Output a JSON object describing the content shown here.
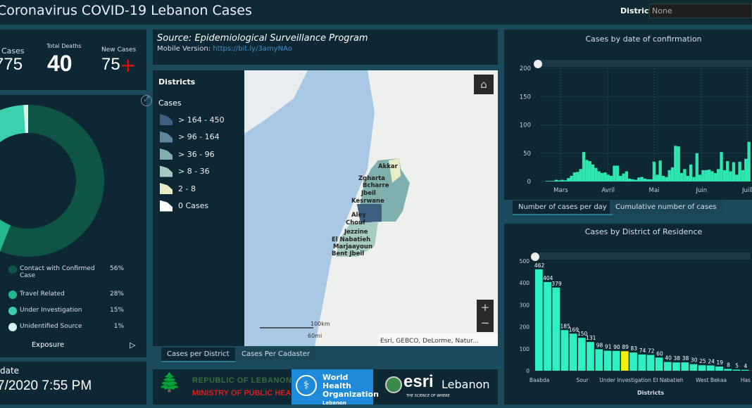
{
  "header": {
    "title": "Coronavirus COVID-19 Lebanon Cases",
    "district_label": "District",
    "district_value": "None"
  },
  "stats": {
    "total_cases_label": "Cases",
    "total_cases_value": "775",
    "deaths_label": "Total Deaths",
    "deaths_value": "40",
    "new_label": "New Cases",
    "new_value": "75",
    "new_icon": "plus-icon"
  },
  "exposure": {
    "title": "Exposure",
    "items": [
      {
        "label": "Contact with Confirmed Case",
        "pct": "56%",
        "value": 56,
        "color": "#0f5546"
      },
      {
        "label": "Travel Related",
        "pct": "28%",
        "value": 28,
        "color": "#23b890"
      },
      {
        "label": "Under Investigation",
        "pct": "15%",
        "value": 15,
        "color": "#3ad0ac"
      },
      {
        "label": "Unidentified Source",
        "pct": "1%",
        "value": 1,
        "color": "#d6f4ee"
      }
    ]
  },
  "update": {
    "label": "date",
    "value": "7/2020 7:55 PM"
  },
  "source": {
    "text": "Source: Epidemiological Surveillance Program",
    "mobile_label": "Mobile Version:",
    "mobile_link": "https://bit.ly/3amyNAo"
  },
  "map": {
    "legend_title": "Districts",
    "legend_subtitle": "Cases",
    "classes": [
      {
        "label": "> 164 - 450",
        "color": "#3d5f80"
      },
      {
        "label": "> 96 - 164",
        "color": "#5f879c"
      },
      {
        "label": "> 36 - 96",
        "color": "#7fb0ad"
      },
      {
        "label": "> 8 - 36",
        "color": "#a6cbc2"
      },
      {
        "label": "2 - 8",
        "color": "#e8edc8"
      },
      {
        "label": "0 Cases",
        "color": "#ffffff"
      }
    ],
    "district_labels": [
      "Akkar",
      "Zgharta",
      "Bcharre",
      "Jbeil",
      "Kesrwane",
      "Aley",
      "Chouf",
      "Jezzine",
      "El Nabatieh",
      "Marjaayoun",
      "Bent Jbeil"
    ],
    "scale_km": "100km",
    "scale_mi": "60mi",
    "attribution": "Esri, GEBCO, DeLorme, Natur...",
    "tabs": [
      "Cases per District",
      "Cases Per Cadaster"
    ]
  },
  "logos": {
    "moph_line1": "REPUBLIC OF LEBANON",
    "moph_line2": "MINISTRY OF PUBLIC HEALTH",
    "who_line1": "World Health",
    "who_line2": "Organization",
    "who_line3": "Lebanon",
    "esri": "esri",
    "esri_country": "Lebanon",
    "esri_tag": "THE SCIENCE OF WHERE"
  },
  "chart_data": [
    {
      "type": "bar",
      "title": "Cases by  date of confirmation",
      "ylim": [
        0,
        200
      ],
      "yticks": [
        0,
        50,
        100,
        150,
        200
      ],
      "xticks": [
        "Mars",
        "Avril",
        "Mai",
        "Juin",
        "Juill"
      ],
      "color": "#2ee6b0",
      "x": [
        "2020-02-21",
        "2020-02-23",
        "2020-02-25",
        "2020-02-27",
        "2020-02-29",
        "2020-03-02",
        "2020-03-04",
        "2020-03-06",
        "2020-03-08",
        "2020-03-10",
        "2020-03-12",
        "2020-03-14",
        "2020-03-16",
        "2020-03-18",
        "2020-03-20",
        "2020-03-22",
        "2020-03-24",
        "2020-03-26",
        "2020-03-28",
        "2020-03-30",
        "2020-04-01",
        "2020-04-03",
        "2020-04-05",
        "2020-04-07",
        "2020-04-09",
        "2020-04-11",
        "2020-04-13",
        "2020-04-15",
        "2020-04-17",
        "2020-04-19",
        "2020-04-21",
        "2020-04-23",
        "2020-04-25",
        "2020-04-27",
        "2020-04-29",
        "2020-05-01",
        "2020-05-03",
        "2020-05-05",
        "2020-05-07",
        "2020-05-09",
        "2020-05-11",
        "2020-05-13",
        "2020-05-15",
        "2020-05-17",
        "2020-05-19",
        "2020-05-21",
        "2020-05-23",
        "2020-05-25",
        "2020-05-27",
        "2020-05-29",
        "2020-05-31",
        "2020-06-02",
        "2020-06-04",
        "2020-06-06",
        "2020-06-08",
        "2020-06-10",
        "2020-06-12",
        "2020-06-14",
        "2020-06-16",
        "2020-06-18",
        "2020-06-20",
        "2020-06-22",
        "2020-06-24",
        "2020-06-26",
        "2020-06-28",
        "2020-06-30",
        "2020-07-02"
      ],
      "values": [
        1,
        1,
        1,
        3,
        2,
        3,
        2,
        6,
        10,
        16,
        17,
        22,
        52,
        38,
        36,
        30,
        24,
        18,
        15,
        16,
        12,
        10,
        28,
        28,
        10,
        14,
        18,
        5,
        4,
        3,
        7,
        8,
        5,
        4,
        4,
        35,
        12,
        37,
        10,
        8,
        20,
        25,
        63,
        62,
        15,
        22,
        10,
        30,
        8,
        50,
        12,
        20,
        20,
        21,
        18,
        15,
        22,
        52,
        20,
        36,
        18,
        34,
        12,
        35,
        20,
        40,
        70
      ],
      "tabs": [
        "Number of cases per day",
        "Cumulative number of cases"
      ]
    },
    {
      "type": "bar",
      "title": "Cases by District of Residence",
      "xlabel": "Districts",
      "ylim": [
        0,
        500
      ],
      "yticks": [
        0,
        100,
        200,
        300,
        400,
        500
      ],
      "color": "#2ef0c0",
      "highlight_color": "#f2f20a",
      "categories": [
        "Baabda",
        "",
        "",
        "",
        "",
        "Sour",
        "",
        "",
        "",
        "",
        "Under Investigation",
        "",
        "",
        "",
        "",
        "El Nabatieh",
        "",
        "",
        "",
        "",
        "West Bekaa",
        "",
        "",
        "",
        "Has"
      ],
      "values": [
        462,
        404,
        379,
        185,
        169,
        150,
        131,
        98,
        91,
        90,
        89,
        83,
        74,
        72,
        60,
        40,
        38,
        38,
        30,
        25,
        24,
        19,
        8,
        5,
        4
      ],
      "highlight_index": 10
    }
  ]
}
